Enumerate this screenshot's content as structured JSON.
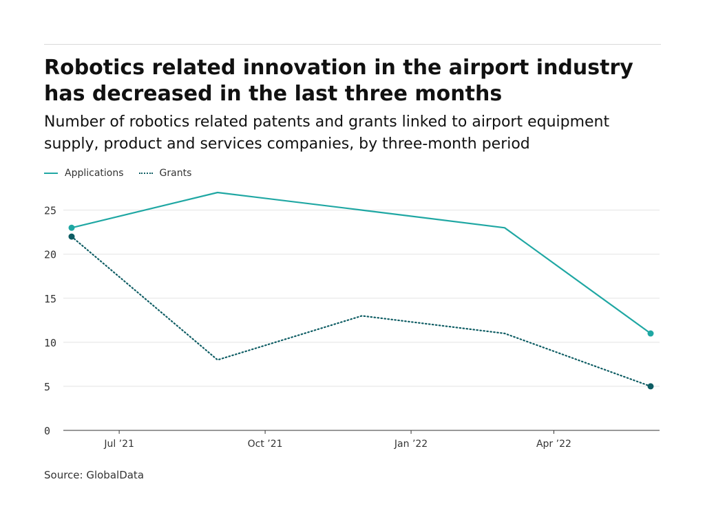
{
  "header": {
    "title": "Robotics related innovation in the airport industry has decreased in the last three months",
    "subtitle": "Number of robotics related patents and grants linked to airport equipment supply, product and services companies, by three-month period"
  },
  "legend": [
    {
      "label": "Applications",
      "color": "#1fa7a3",
      "style": "solid"
    },
    {
      "label": "Grants",
      "color": "#0d5c63",
      "style": "dotted"
    }
  ],
  "footer": {
    "source": "Source: GlobalData"
  },
  "chart_data": {
    "type": "line",
    "x": [
      "2021-06",
      "2021-09",
      "2021-12",
      "2022-03",
      "2022-06"
    ],
    "series": [
      {
        "name": "Applications",
        "values": [
          23,
          27,
          25,
          23,
          11
        ],
        "color": "#1fa7a3",
        "style": "solid"
      },
      {
        "name": "Grants",
        "values": [
          22,
          8,
          13,
          11,
          5
        ],
        "color": "#0d5c63",
        "style": "dotted"
      }
    ],
    "x_ticks": [
      "Jul ’21",
      "Oct ’21",
      "Jan ’22",
      "Apr ’22"
    ],
    "y_ticks": [
      0,
      5,
      10,
      15,
      20,
      25
    ],
    "ylim": [
      0,
      27
    ],
    "grid": true,
    "legend_position": "top-left",
    "xlabel": "",
    "ylabel": ""
  }
}
